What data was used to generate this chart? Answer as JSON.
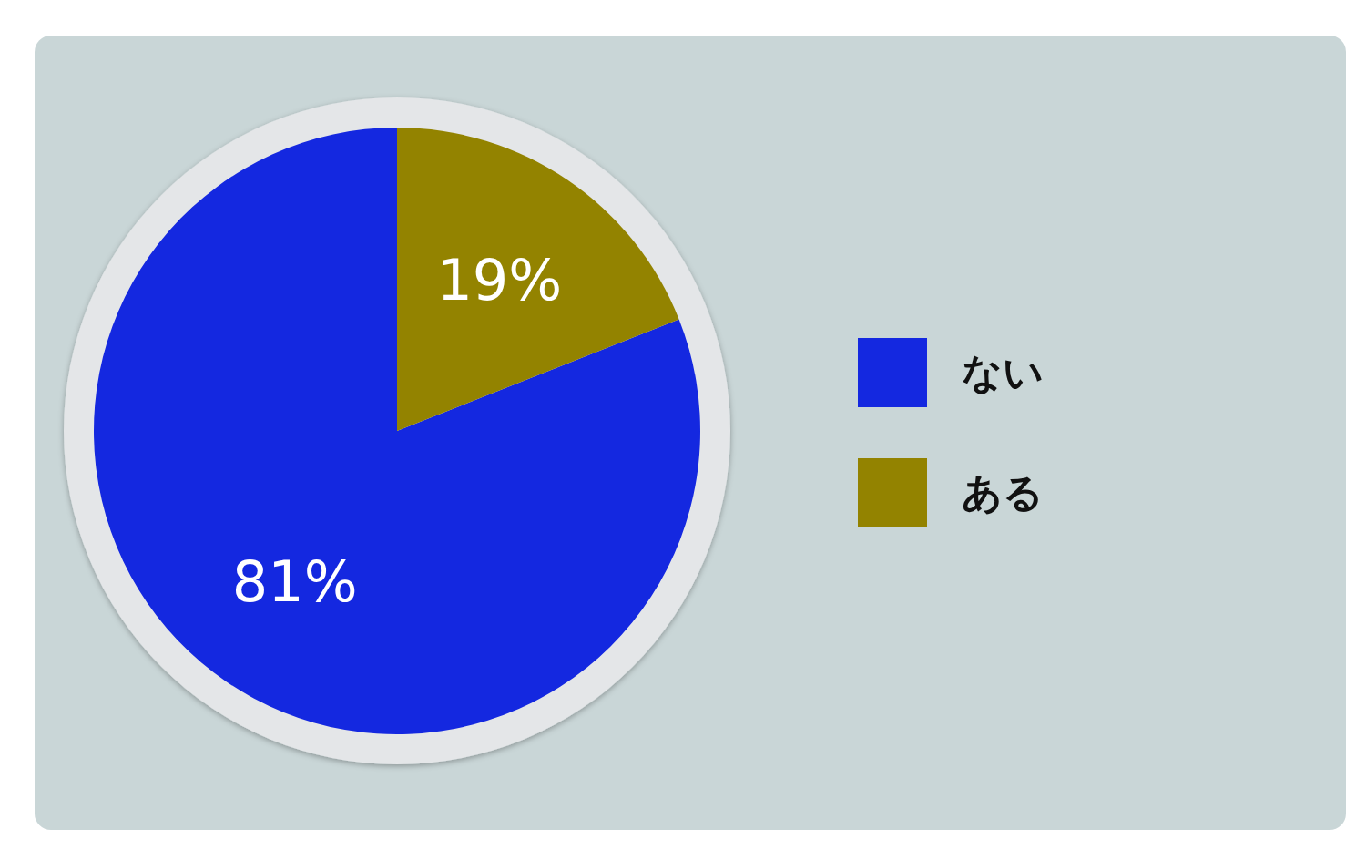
{
  "chart_data": {
    "type": "pie",
    "categories": [
      "ない",
      "ある"
    ],
    "values": [
      81,
      19
    ],
    "colors": [
      "#1428e0",
      "#938300"
    ],
    "value_labels": [
      "81%",
      "19%"
    ],
    "legend": "right"
  }
}
